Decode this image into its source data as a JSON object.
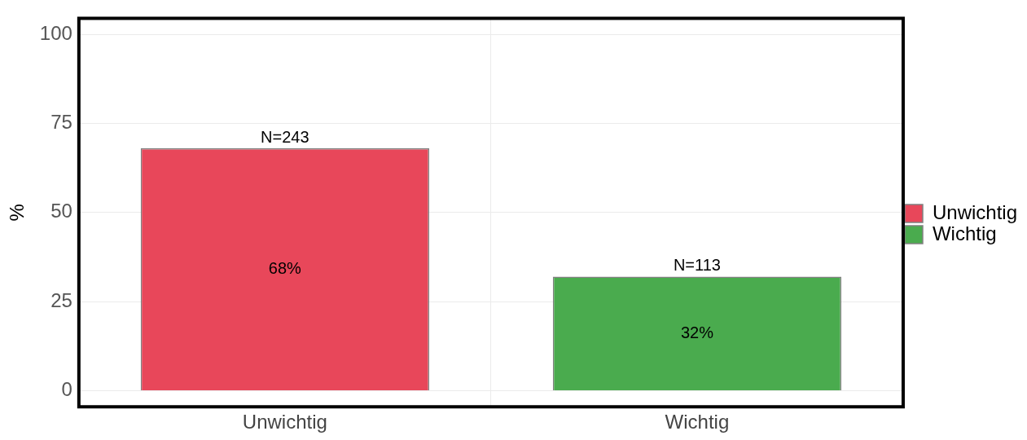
{
  "chart_data": {
    "type": "bar",
    "ylabel": "%",
    "categories": [
      "Unwichtig",
      "Wichtig"
    ],
    "series": [
      {
        "name": "Unwichtig",
        "color": "#e8475a",
        "values": [
          68,
          null
        ],
        "value_labels": [
          "68%",
          null
        ]
      },
      {
        "name": "Wichtig",
        "color": "#4aab4e",
        "values": [
          null,
          32
        ],
        "value_labels": [
          null,
          "32%"
        ]
      }
    ],
    "annotations": [
      {
        "text": "N=243",
        "x": "Unwichtig",
        "y": 68
      },
      {
        "text": "N=113",
        "x": "Wichtig",
        "y": 32
      }
    ],
    "ylim": [
      -4.5,
      104.5
    ],
    "yticks": [
      0,
      25,
      50,
      75,
      100
    ],
    "grid": true,
    "legend": "right"
  }
}
